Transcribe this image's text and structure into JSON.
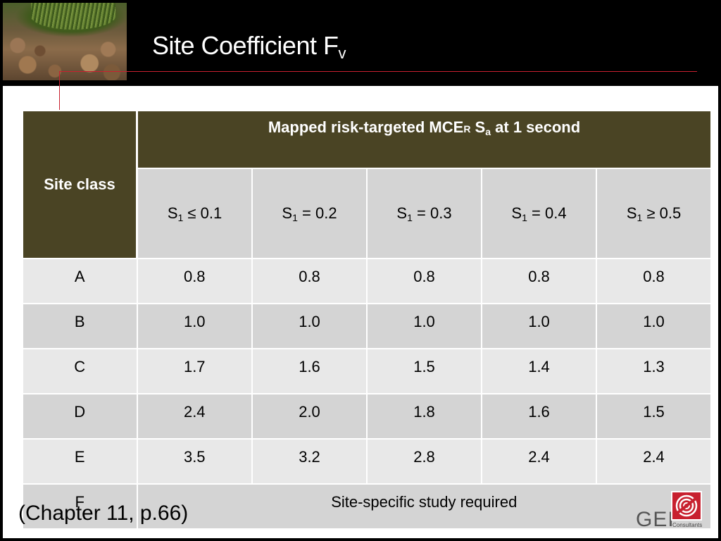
{
  "slide": {
    "title_main": "Site Coefficient F",
    "title_sub": "v",
    "reference": "(Chapter 11, p.66)"
  },
  "table": {
    "site_class_header": "Site class",
    "group_header": {
      "part1": "Mapped risk-targeted MCE",
      "part_r": "R",
      "part2": " S",
      "part_a": "a",
      "part3": " at 1 second"
    },
    "columns": [
      {
        "prefix": "S",
        "sub": "1",
        "suffix": " ≤ 0.1"
      },
      {
        "prefix": "S",
        "sub": "1",
        "suffix": " = 0.2"
      },
      {
        "prefix": "S",
        "sub": "1",
        "suffix": " = 0.3"
      },
      {
        "prefix": "S",
        "sub": "1",
        "suffix": " = 0.4"
      },
      {
        "prefix": "S",
        "sub": "1",
        "suffix": " ≥ 0.5"
      }
    ],
    "rows": [
      {
        "class": "A",
        "values": [
          "0.8",
          "0.8",
          "0.8",
          "0.8",
          "0.8"
        ]
      },
      {
        "class": "B",
        "values": [
          "1.0",
          "1.0",
          "1.0",
          "1.0",
          "1.0"
        ]
      },
      {
        "class": "C",
        "values": [
          "1.7",
          "1.6",
          "1.5",
          "1.4",
          "1.3"
        ]
      },
      {
        "class": "D",
        "values": [
          "2.4",
          "2.0",
          "1.8",
          "1.6",
          "1.5"
        ]
      },
      {
        "class": "E",
        "values": [
          "3.5",
          "3.2",
          "2.8",
          "2.4",
          "2.4"
        ]
      },
      {
        "class": "F",
        "note": "Site-specific study required"
      }
    ]
  },
  "logo": {
    "name": "GEI",
    "tagline": "Consultants"
  },
  "colors": {
    "header_dark": "#4a4424",
    "accent_red": "#c8202f",
    "cell_light": "#e8e8e8",
    "cell_dark": "#d4d4d4"
  }
}
